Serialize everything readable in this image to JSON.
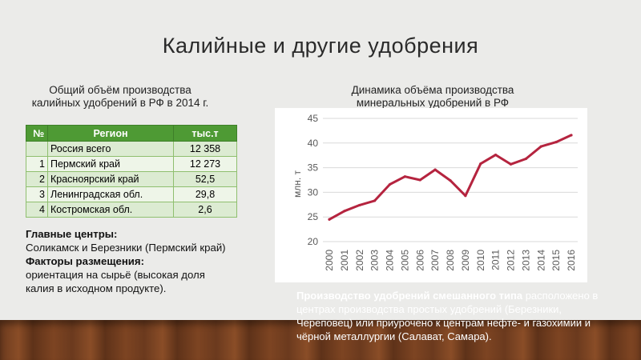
{
  "title": "Калийные и другие удобрения",
  "left_caption": "Общий объём производства калийных удобрений в РФ в 2014 г.",
  "right_caption": "Динамика объёма производства минеральных удобрений в РФ",
  "table": {
    "headers": [
      "№",
      "Регион",
      "тыс.т"
    ],
    "rows": [
      {
        "num": "",
        "region": "Россия всего",
        "value": "12 358"
      },
      {
        "num": "1",
        "region": "Пермский край",
        "value": "12 273"
      },
      {
        "num": "2",
        "region": "Красноярский край",
        "value": "52,5"
      },
      {
        "num": "3",
        "region": "Ленинградская обл.",
        "value": "29,8"
      },
      {
        "num": "4",
        "region": "Костромская обл.",
        "value": "2,6"
      }
    ]
  },
  "notes": {
    "centers_heading": "Главные центры:",
    "centers_text": "Соликамск и Березники (Пермский край)",
    "factors_heading": "Факторы размещения:",
    "factors_text": "ориентация на сырьё (высокая доля калия в исходном продукте)."
  },
  "bottom_note": {
    "heading": "Производство удобрений смешанного типа",
    "text": " расположено в центрах производства простых удобрений (Березники, Череповец) или приурочено к центрам нефте- и газохимии и чёрной металлургии (Салават, Самара)."
  },
  "colors": {
    "line": "#b5243f",
    "table_header": "#4e9a34",
    "background": "#ebebe9"
  },
  "chart_data": {
    "type": "line",
    "title": "",
    "xlabel": "",
    "ylabel": "млн. т",
    "x": [
      "2000",
      "2001",
      "2002",
      "2003",
      "2004",
      "2005",
      "2006",
      "2007",
      "2008",
      "2009",
      "2010",
      "2011",
      "2012",
      "2013",
      "2014",
      "2015",
      "2016"
    ],
    "series": [
      {
        "values": [
          24.5,
          26.2,
          27.4,
          28.3,
          31.6,
          33.2,
          32.5,
          34.6,
          32.4,
          29.3,
          35.8,
          37.6,
          35.7,
          36.8,
          39.3,
          40.2,
          41.6
        ]
      }
    ],
    "ylim": [
      20,
      45
    ],
    "yticks": [
      20,
      25,
      30,
      35,
      40,
      45
    ],
    "grid": true
  }
}
